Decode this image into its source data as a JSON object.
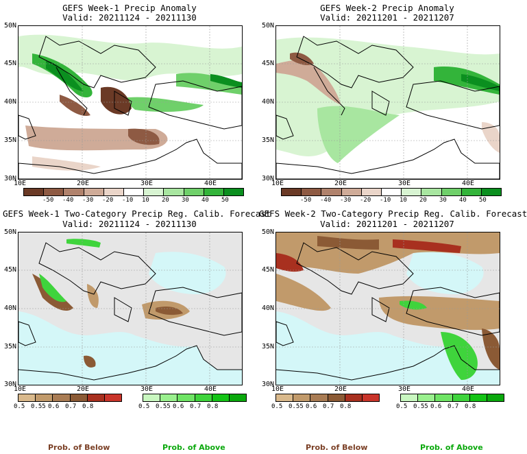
{
  "panels": [
    {
      "title": "GEFS Week-1 Precip Anomaly",
      "valid": "Valid: 20211124 - 20211130"
    },
    {
      "title": "GEFS Week-2 Precip Anomaly",
      "valid": "Valid: 20211201 - 20211207"
    },
    {
      "title": "GEFS Week-1 Two-Category Precip Reg. Calib. Forecast",
      "valid": "Valid: 20211124 - 20211130"
    },
    {
      "title": "GEFS Week-2 Two-Category Precip Reg. Calib. Forecast",
      "valid": "Valid: 20211201 - 20211207"
    }
  ],
  "lat_labels": [
    "50N",
    "45N",
    "40N",
    "35N",
    "30N"
  ],
  "lon_labels": [
    "10E",
    "20E",
    "30E",
    "40E"
  ],
  "anomaly_scale": {
    "labels": [
      "-50",
      "-40",
      "-30",
      "-20",
      "-10",
      "10",
      "20",
      "30",
      "40",
      "50"
    ],
    "colors": [
      "#6b3a26",
      "#8e5a43",
      "#b0826c",
      "#cfab98",
      "#ead5c9",
      "#ffffff",
      "#d8f4d2",
      "#a8e6a0",
      "#6fd06a",
      "#33b43a",
      "#0b8f1f"
    ]
  },
  "below_scale": {
    "labels": [
      "0.5",
      "0.55",
      "0.6",
      "0.7",
      "0.8"
    ],
    "colors": [
      "#d9b98c",
      "#c19a6b",
      "#a97c54",
      "#8b5a35",
      "#a8301f",
      "#c9342a"
    ]
  },
  "above_scale": {
    "labels": [
      "0.5",
      "0.55",
      "0.6",
      "0.7",
      "0.8"
    ],
    "colors": [
      "#c9f7c0",
      "#9af08e",
      "#6fe465",
      "#3fd43c",
      "#14c416",
      "#0aa80c"
    ]
  },
  "prob_below": "Prob. of Below",
  "prob_above": "Prob. of Above",
  "colors": {
    "below_text": "#7a3f25",
    "above_text": "#0aa80c",
    "ocean": "#d4f7f8",
    "nodata": "#e6e6e6"
  }
}
